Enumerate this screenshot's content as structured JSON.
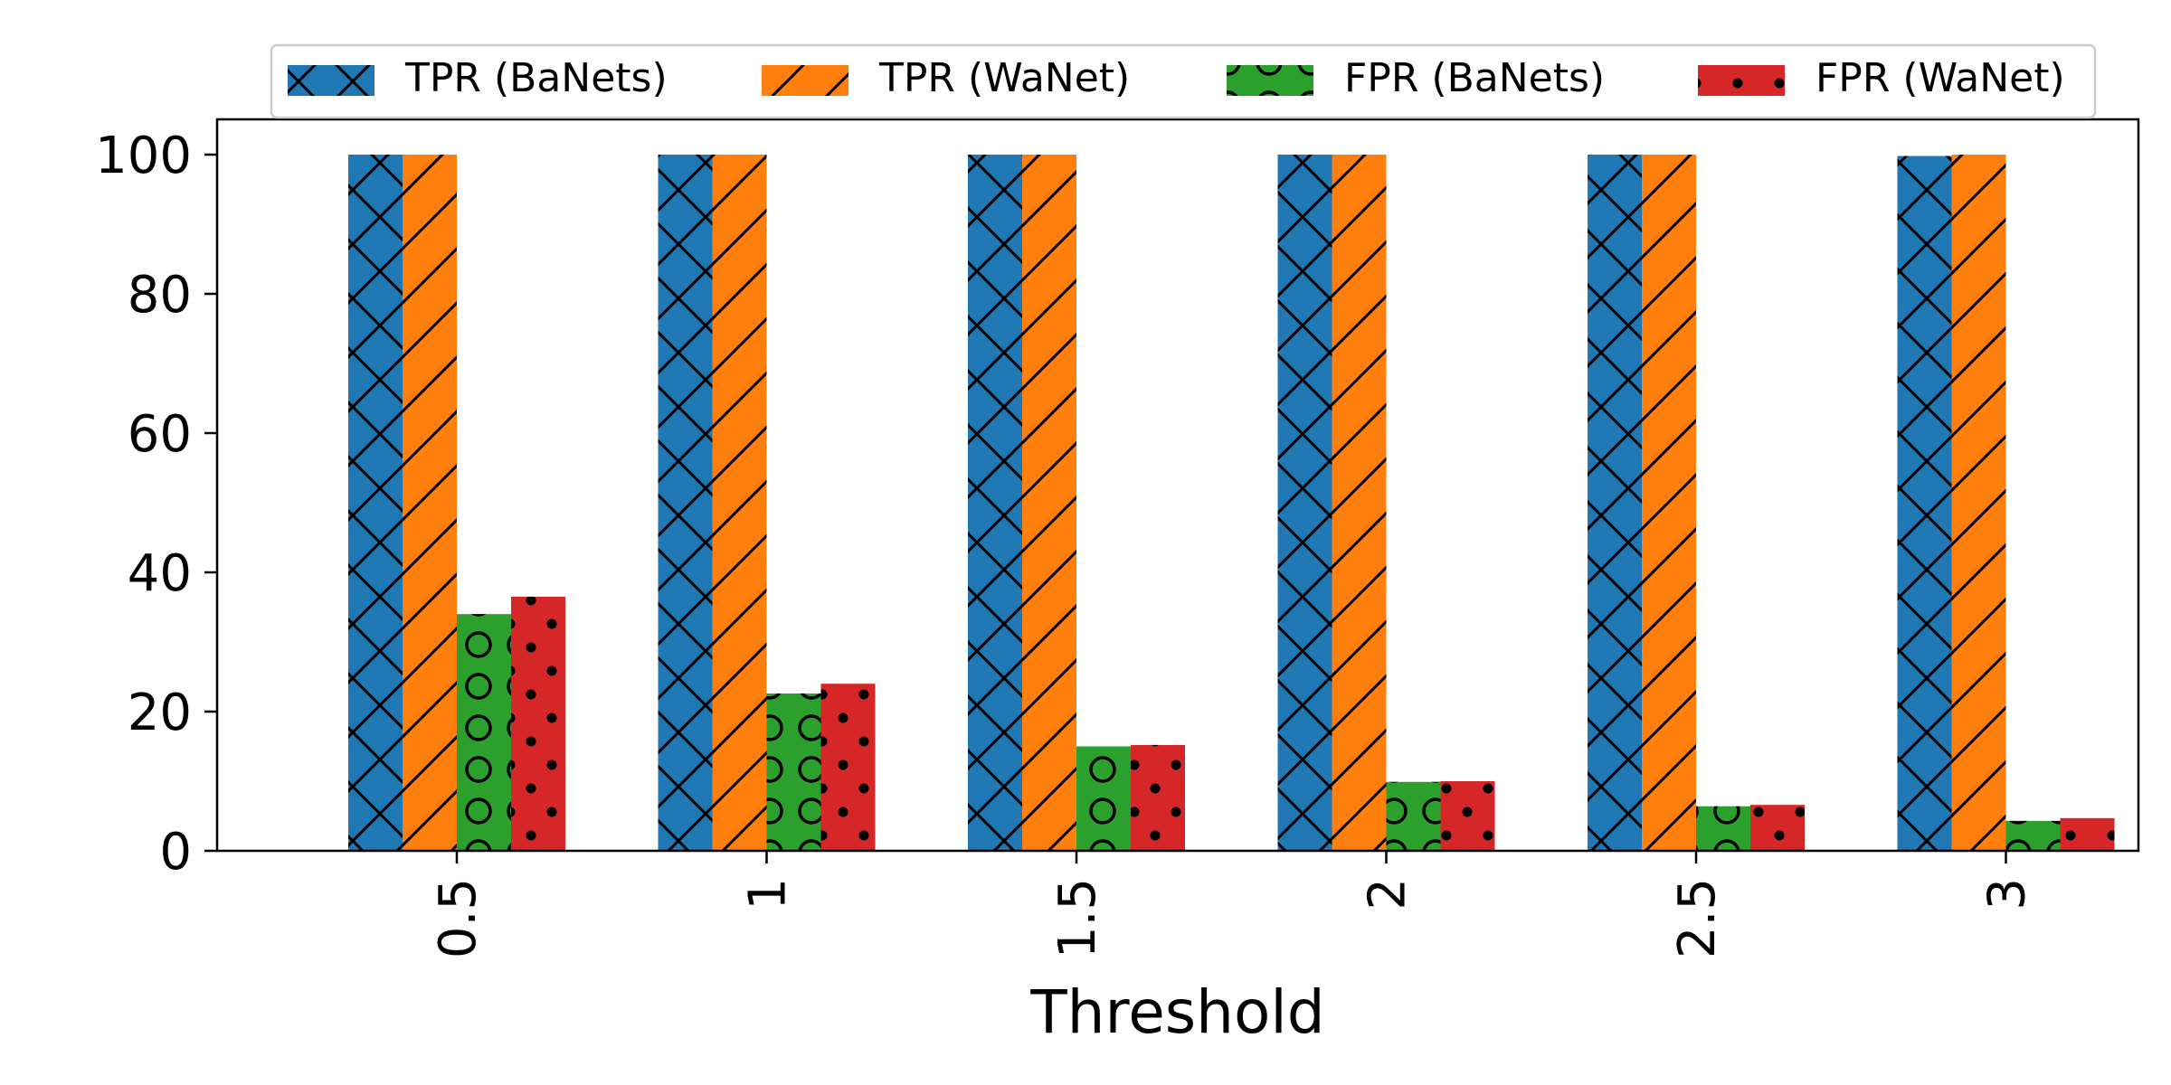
{
  "chart_data": {
    "type": "bar",
    "title": "",
    "xlabel": "Threshold",
    "ylabel": "",
    "categories": [
      "0.5",
      "1",
      "1.5",
      "2",
      "2.5",
      "3"
    ],
    "ylim": [
      0,
      105
    ],
    "yticks": [
      0,
      20,
      40,
      60,
      80,
      100
    ],
    "grid": false,
    "legend_position": "top-center",
    "series": [
      {
        "name": "TPR (BaNets)",
        "color": "#1f77b4",
        "hatch": "x",
        "values": [
          100,
          100,
          100,
          100,
          100,
          99.8
        ]
      },
      {
        "name": "TPR (WaNet)",
        "color": "#ff7f0e",
        "hatch": "/",
        "values": [
          100,
          100,
          100,
          100,
          100,
          100
        ]
      },
      {
        "name": "FPR (BaNets)",
        "color": "#2ca02c",
        "hatch": "o",
        "values": [
          34.0,
          22.6,
          15.0,
          9.9,
          6.4,
          4.3
        ]
      },
      {
        "name": "FPR (WaNet)",
        "color": "#d62728",
        "hatch": ".",
        "values": [
          36.5,
          24.0,
          15.2,
          10.0,
          6.6,
          4.7
        ]
      }
    ]
  }
}
